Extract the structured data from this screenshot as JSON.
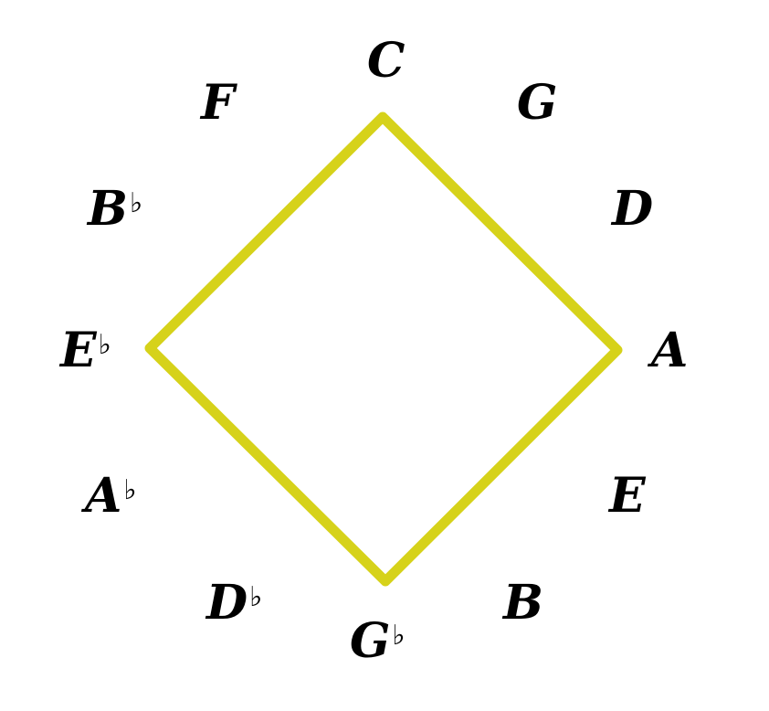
{
  "circle_of_fifths": {
    "notes": [
      {
        "letter": "C",
        "accidental": ""
      },
      {
        "letter": "G",
        "accidental": ""
      },
      {
        "letter": "D",
        "accidental": ""
      },
      {
        "letter": "A",
        "accidental": ""
      },
      {
        "letter": "E",
        "accidental": ""
      },
      {
        "letter": "B",
        "accidental": ""
      },
      {
        "letter": "G",
        "accidental": "♭"
      },
      {
        "letter": "D",
        "accidental": "♭"
      },
      {
        "letter": "A",
        "accidental": "♭"
      },
      {
        "letter": "E",
        "accidental": "♭"
      },
      {
        "letter": "B",
        "accidental": "♭"
      },
      {
        "letter": "F",
        "accidental": ""
      }
    ],
    "highlighted_notes": [
      "C",
      "A",
      "G♭",
      "E♭"
    ],
    "shape": "diamond",
    "shape_color": "#d6d21a",
    "text_color": "#000000"
  }
}
